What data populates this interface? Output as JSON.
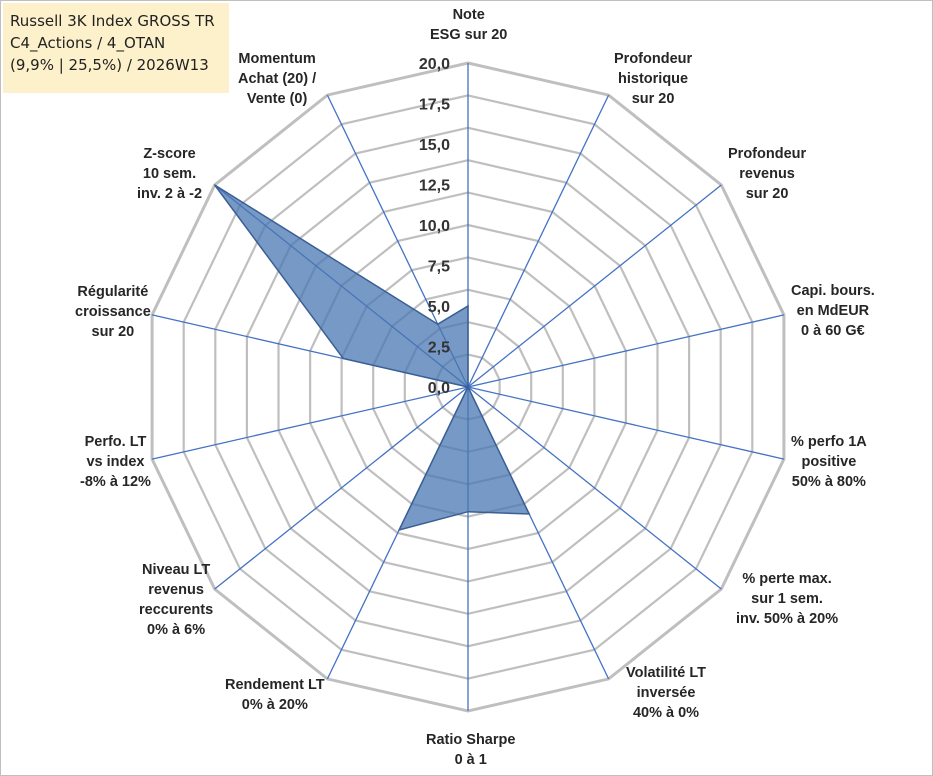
{
  "info": {
    "lines": [
      "Russell 3K Index GROSS TR",
      "C4_Actions / 4_OTAN",
      "(9,9% | 25,5%) / 2026W13"
    ]
  },
  "colors": {
    "grid": "#bfbfbf",
    "spokes": "#4472c4",
    "fill": "#4a77b3",
    "fill_stroke": "#3a5f94",
    "info_bg": "#fdf1cc"
  },
  "chart_data": {
    "type": "radar",
    "range": [
      0,
      20
    ],
    "tick_labels": [
      "0,0",
      "2,5",
      "5,0",
      "7,5",
      "10,0",
      "12,5",
      "15,0",
      "17,5",
      "20,0"
    ],
    "axes": [
      [
        "Note",
        "ESG sur 20"
      ],
      [
        "Profondeur",
        "historique",
        "sur 20"
      ],
      [
        "Profondeur",
        "revenus",
        "sur 20"
      ],
      [
        "Capi. bours.",
        "en MdEUR",
        "0 à 60 G€"
      ],
      [
        "% perfo 1A",
        "positive",
        "50% à 80%"
      ],
      [
        "% perte max.",
        "sur 1 sem.",
        "inv. 50% à 20%"
      ],
      [
        "Volatilité LT",
        "inversée",
        "40% à 0%"
      ],
      [
        "Ratio Sharpe",
        "0 à 1"
      ],
      [
        "Rendement LT",
        "0% à 20%"
      ],
      [
        "Niveau LT",
        "revenus",
        "reccurents",
        "0% à 6%"
      ],
      [
        "Perfo. LT",
        "vs index",
        "-8% à 12%"
      ],
      [
        "Régularité",
        "croissance",
        "sur 20"
      ],
      [
        "Z-score",
        "10 sem.",
        "inv. 2 à -2"
      ],
      [
        "Momentum",
        "Achat (20) /",
        "Vente (0)"
      ]
    ],
    "values": [
      5.0,
      0.0,
      0.0,
      0.0,
      0.0,
      0.0,
      8.7,
      7.7,
      9.8,
      0.0,
      0.0,
      7.9,
      20.0,
      4.3
    ]
  }
}
